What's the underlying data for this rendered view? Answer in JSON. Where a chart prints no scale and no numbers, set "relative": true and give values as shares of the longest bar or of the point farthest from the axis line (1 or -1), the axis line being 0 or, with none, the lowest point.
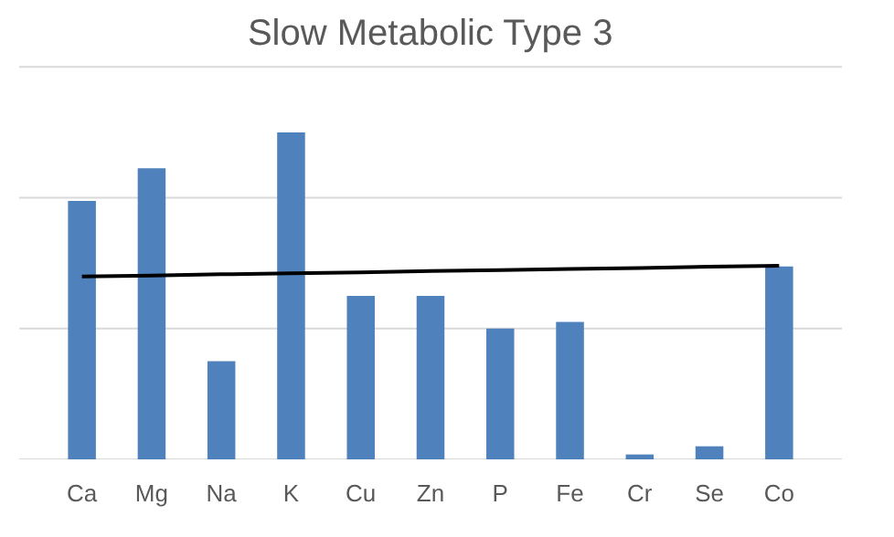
{
  "chart_data": {
    "type": "bar",
    "title": "Slow Metabolic Type 3",
    "relative": true,
    "categories": [
      "Ca",
      "Mg",
      "Na",
      "K",
      "Cu",
      "Zn",
      "P",
      "Fe",
      "Cr",
      "Se",
      "Co"
    ],
    "series": [
      {
        "color": "#4f81bd",
        "values": [
          0.79,
          0.89,
          0.3,
          1,
          0.5,
          0.5,
          0.4,
          0.42,
          0.015,
          0.04,
          0.59
        ]
      },
      {
        "type": "line",
        "color": "#000000",
        "values": [
          0.559,
          0.562,
          0.566,
          0.569,
          0.572,
          0.576,
          0.579,
          0.582,
          0.585,
          0.589,
          0.592
        ]
      }
    ],
    "ref_lines": [
      {
        "axis": "y",
        "value": 0,
        "color": "#d9d9d9"
      },
      {
        "axis": "y",
        "value": 0.4,
        "color": "#d9d9d9"
      },
      {
        "axis": "y",
        "value": 0.8,
        "color": "#d9d9d9"
      },
      {
        "axis": "y",
        "value": 1.2,
        "color": "#d9d9d9"
      }
    ]
  }
}
